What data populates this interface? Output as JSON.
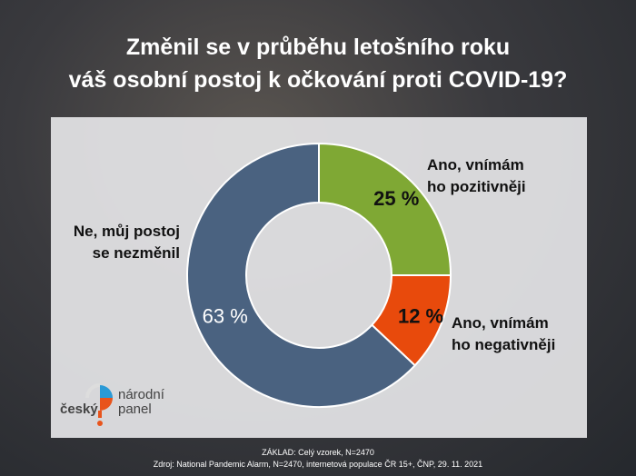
{
  "title_lines": [
    "Změnil se v průběhu letošního roku",
    "váš osobní postoj k očkování proti COVID-19?"
  ],
  "chart_data": {
    "type": "pie",
    "variant": "donut",
    "slices": [
      {
        "label": "Ano, vnímám ho pozitivněji",
        "label_lines": [
          "Ano, vnímám",
          "ho pozitivněji"
        ],
        "value": 25,
        "value_label": "25 %",
        "color": "#7fa834"
      },
      {
        "label": "Ano, vnímám ho negativněji",
        "label_lines": [
          "Ano, vnímám",
          "ho negativněji"
        ],
        "value": 12,
        "value_label": "12 %",
        "color": "#e84a0c"
      },
      {
        "label": "Ne, můj postoj se nezměnil",
        "label_lines": [
          "Ne, můj postoj",
          "se nezměnil"
        ],
        "value": 63,
        "value_label": "63 %",
        "color": "#4a6280"
      }
    ],
    "start": "top, clockwise"
  },
  "logo": {
    "word1": "český",
    "word2": "národní",
    "word3": "panel"
  },
  "footer": {
    "base": "ZÁKLAD: Celý vzorek, N=2470",
    "source": "Zdroj: National Pandemic Alarm, N=2470, internetová populace ČR 15+, ČNP, 29. 11. 2021"
  }
}
